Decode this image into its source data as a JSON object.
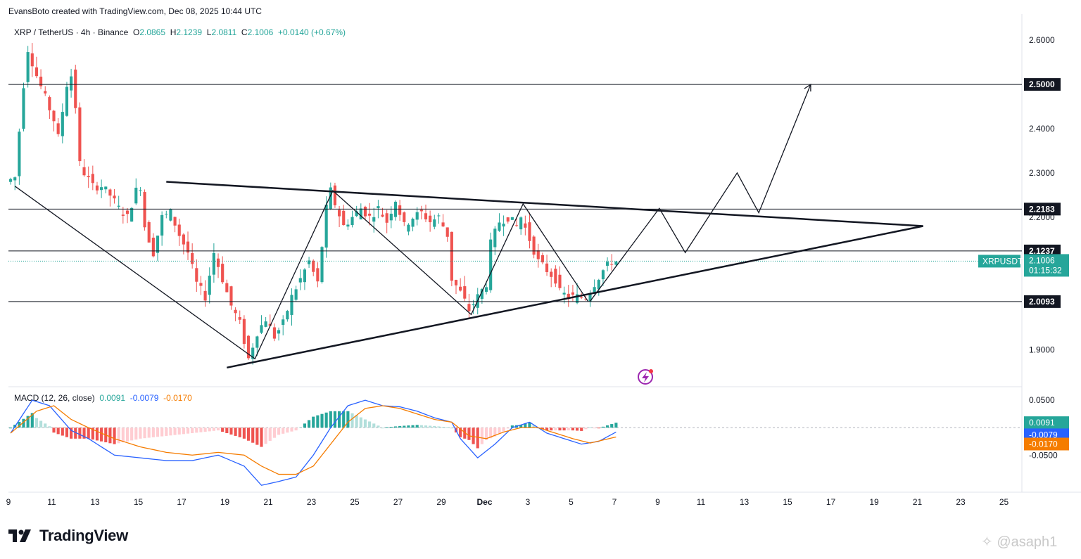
{
  "header": {
    "attribution": "EvansBoto created with TradingView.com, Dec 08, 2025 10:44 UTC"
  },
  "legend": {
    "symbol": "XRP / TetherUS · 4h · Binance",
    "o_label": "O",
    "o": "2.0865",
    "h_label": "H",
    "h": "2.1239",
    "l_label": "L",
    "l": "2.0811",
    "c_label": "C",
    "c": "2.1006",
    "change": "+0.0140 (+0.67%)"
  },
  "macd_legend": {
    "label": "MACD (12, 26, close)",
    "hist": "0.0091",
    "macd": "-0.0079",
    "signal": "-0.0170"
  },
  "colors": {
    "up": "#26a69a",
    "down": "#ef5350",
    "hist_up": "#26a69a",
    "hist_up_light": "#b2dfdb",
    "hist_down": "#ef5350",
    "hist_down_light": "#ffcdd2",
    "macd": "#2962ff",
    "signal": "#f57c00"
  },
  "chart_data": {
    "type": "candlestick",
    "symbol": "XRPUSDT",
    "interval": "4h",
    "price_axis": {
      "ticks": [
        "2.6000",
        "2.4000",
        "2.3000",
        "2.2000",
        "1.9000"
      ],
      "range": [
        1.82,
        2.64
      ]
    },
    "time_axis": {
      "ticks": [
        "9",
        "11",
        "13",
        "15",
        "17",
        "19",
        "21",
        "23",
        "25",
        "27",
        "29",
        "Dec",
        "3",
        "5",
        "7",
        "9",
        "11",
        "13",
        "15",
        "17",
        "19",
        "21",
        "23",
        "25"
      ]
    },
    "horizontal_levels": [
      {
        "value": 2.5,
        "label": "2.5000"
      },
      {
        "value": 2.2183,
        "label": "2.2183"
      },
      {
        "value": 2.1237,
        "label": "2.1237"
      },
      {
        "value": 2.0093,
        "label": "2.0093"
      }
    ],
    "current_price": {
      "symbol": "XRPUSDT",
      "value": 2.1006,
      "label": "2.1006",
      "countdown": "01:15:32"
    },
    "candle_path": [
      [
        0,
        2.28
      ],
      [
        2,
        2.29
      ],
      [
        4,
        2.5
      ],
      [
        5,
        2.58
      ],
      [
        7,
        2.52
      ],
      [
        9,
        2.47
      ],
      [
        11,
        2.42
      ],
      [
        12,
        2.38
      ],
      [
        14,
        2.5
      ],
      [
        15,
        2.52
      ],
      [
        16,
        2.45
      ],
      [
        17,
        2.32
      ],
      [
        18,
        2.3
      ],
      [
        20,
        2.27
      ],
      [
        22,
        2.27
      ],
      [
        24,
        2.25
      ],
      [
        26,
        2.22
      ],
      [
        28,
        2.2
      ],
      [
        30,
        2.26
      ],
      [
        31,
        2.27
      ],
      [
        32,
        2.18
      ],
      [
        34,
        2.12
      ],
      [
        36,
        2.2
      ],
      [
        38,
        2.21
      ],
      [
        40,
        2.16
      ],
      [
        42,
        2.12
      ],
      [
        44,
        2.05
      ],
      [
        46,
        2.02
      ],
      [
        48,
        2.12
      ],
      [
        50,
        2.06
      ],
      [
        52,
        2.0
      ],
      [
        54,
        1.96
      ],
      [
        56,
        1.88
      ],
      [
        58,
        1.94
      ],
      [
        60,
        1.97
      ],
      [
        62,
        1.93
      ],
      [
        64,
        1.96
      ],
      [
        66,
        2.02
      ],
      [
        68,
        2.06
      ],
      [
        70,
        2.1
      ],
      [
        72,
        2.05
      ],
      [
        74,
        2.22
      ],
      [
        75,
        2.26
      ],
      [
        76,
        2.23
      ],
      [
        78,
        2.18
      ],
      [
        80,
        2.2
      ],
      [
        82,
        2.22
      ],
      [
        84,
        2.2
      ],
      [
        86,
        2.22
      ],
      [
        88,
        2.19
      ],
      [
        90,
        2.24
      ],
      [
        92,
        2.18
      ],
      [
        94,
        2.2
      ],
      [
        96,
        2.21
      ],
      [
        98,
        2.19
      ],
      [
        100,
        2.2
      ],
      [
        101,
        2.18
      ],
      [
        102,
        2.16
      ],
      [
        103,
        2.06
      ],
      [
        105,
        2.03
      ],
      [
        107,
        1.99
      ],
      [
        109,
        2.02
      ],
      [
        111,
        2.05
      ],
      [
        112,
        2.14
      ],
      [
        114,
        2.19
      ],
      [
        116,
        2.2
      ],
      [
        118,
        2.18
      ],
      [
        119,
        2.2
      ],
      [
        121,
        2.15
      ],
      [
        123,
        2.1
      ],
      [
        125,
        2.08
      ],
      [
        127,
        2.06
      ],
      [
        128,
        2.03
      ],
      [
        130,
        2.02
      ],
      [
        132,
        2.02
      ],
      [
        134,
        2.02
      ],
      [
        136,
        2.05
      ],
      [
        138,
        2.08
      ],
      [
        140,
        2.1
      ]
    ],
    "patterns": {
      "zigzag": [
        [
          1.0,
          2.27
        ],
        [
          56.5,
          1.88
        ],
        [
          74.5,
          2.26
        ],
        [
          106.5,
          1.98
        ],
        [
          118.5,
          2.23
        ],
        [
          133.5,
          2.01
        ]
      ],
      "descending_trendline": [
        [
          36,
          2.28
        ],
        [
          211,
          2.18
        ]
      ],
      "ascending_trendline": [
        [
          50,
          1.86
        ],
        [
          211,
          2.18
        ]
      ],
      "projection": [
        [
          134,
          2.01
        ],
        [
          150,
          2.22
        ],
        [
          156,
          2.12
        ],
        [
          168,
          2.3
        ],
        [
          173,
          2.21
        ],
        [
          185,
          2.5
        ]
      ]
    },
    "macd": {
      "label": "MACD (12, 26, close)",
      "axis_ticks": [
        "0.0500",
        "-0.0500"
      ],
      "range": [
        -0.115,
        0.072
      ],
      "macd_path": [
        [
          0,
          -0.01
        ],
        [
          5,
          0.05
        ],
        [
          9,
          0.04
        ],
        [
          14,
          -0.005
        ],
        [
          18,
          -0.02
        ],
        [
          24,
          -0.05
        ],
        [
          30,
          -0.055
        ],
        [
          36,
          -0.06
        ],
        [
          42,
          -0.06
        ],
        [
          48,
          -0.05
        ],
        [
          54,
          -0.07
        ],
        [
          58,
          -0.105
        ],
        [
          62,
          -0.098
        ],
        [
          66,
          -0.09
        ],
        [
          70,
          -0.05
        ],
        [
          74,
          0.0
        ],
        [
          78,
          0.04
        ],
        [
          82,
          0.05
        ],
        [
          86,
          0.04
        ],
        [
          90,
          0.038
        ],
        [
          94,
          0.03
        ],
        [
          98,
          0.018
        ],
        [
          102,
          0.01
        ],
        [
          104,
          -0.02
        ],
        [
          108,
          -0.055
        ],
        [
          112,
          -0.03
        ],
        [
          116,
          0.0
        ],
        [
          120,
          0.01
        ],
        [
          124,
          -0.01
        ],
        [
          128,
          -0.02
        ],
        [
          132,
          -0.03
        ],
        [
          136,
          -0.025
        ],
        [
          140,
          -0.008
        ]
      ],
      "signal_path": [
        [
          0,
          -0.01
        ],
        [
          6,
          0.03
        ],
        [
          10,
          0.04
        ],
        [
          14,
          0.015
        ],
        [
          18,
          0.0
        ],
        [
          24,
          -0.02
        ],
        [
          30,
          -0.035
        ],
        [
          36,
          -0.045
        ],
        [
          42,
          -0.05
        ],
        [
          48,
          -0.045
        ],
        [
          54,
          -0.05
        ],
        [
          58,
          -0.07
        ],
        [
          62,
          -0.085
        ],
        [
          66,
          -0.085
        ],
        [
          70,
          -0.07
        ],
        [
          74,
          -0.03
        ],
        [
          78,
          0.01
        ],
        [
          82,
          0.035
        ],
        [
          86,
          0.04
        ],
        [
          90,
          0.035
        ],
        [
          94,
          0.025
        ],
        [
          98,
          0.015
        ],
        [
          102,
          0.01
        ],
        [
          106,
          -0.015
        ],
        [
          110,
          -0.02
        ],
        [
          114,
          -0.008
        ],
        [
          118,
          0.0
        ],
        [
          122,
          0.0
        ],
        [
          126,
          -0.01
        ],
        [
          130,
          -0.02
        ],
        [
          134,
          -0.028
        ],
        [
          140,
          -0.017
        ]
      ]
    },
    "price_labels": [
      "2.5000",
      "2.2183",
      "2.1237",
      "2.1006",
      "2.0093"
    ],
    "macd_labels": [
      "0.0091",
      "-0.0079",
      "-0.0170"
    ]
  },
  "brand": {
    "name": "TradingView",
    "logo_mark": "17"
  },
  "watermark": {
    "text": "@asaph1"
  }
}
